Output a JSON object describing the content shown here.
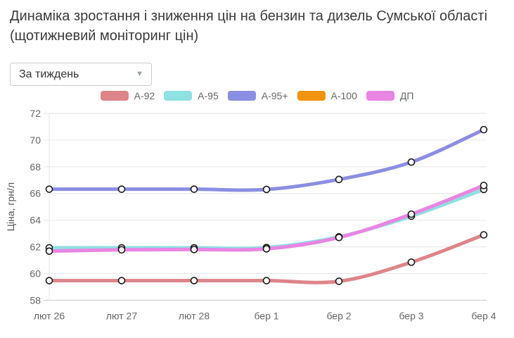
{
  "header": {
    "title_line1": "Динаміка зростання і зниження цін на бензин та дизель Сумської області",
    "title_line2": "(щотижневий моніторинг цін)"
  },
  "controls": {
    "period_select": {
      "value": "За тиждень"
    }
  },
  "chart_data": {
    "type": "line",
    "title": "",
    "xlabel": "",
    "ylabel": "Ціна, грн/л",
    "categories": [
      "лют 26",
      "лют 27",
      "лют 28",
      "бер 1",
      "бер 2",
      "бер 3",
      "бер 4"
    ],
    "y_ticks": [
      58,
      60,
      62,
      64,
      66,
      68,
      70,
      72
    ],
    "y_range": [
      58,
      72
    ],
    "grid": "horizontal",
    "legend_position": "top-center",
    "line_style": "smooth",
    "marker_style": "white circle with black outline",
    "series": [
      {
        "name": "A-92",
        "color": "#de858a",
        "values": [
          59.47,
          59.47,
          59.47,
          59.47,
          59.42,
          60.85,
          62.9
        ]
      },
      {
        "name": "A-95",
        "color": "#8fe0e0",
        "values": [
          61.93,
          61.93,
          61.93,
          61.95,
          62.75,
          64.3,
          66.3
        ]
      },
      {
        "name": "A-95+",
        "color": "#8b8ee2",
        "values": [
          66.32,
          66.32,
          66.32,
          66.3,
          67.05,
          68.35,
          70.78
        ]
      },
      {
        "name": "A-100",
        "color": "#f0930f",
        "values": null
      },
      {
        "name": "ДП",
        "color": "#e985e3",
        "values": [
          61.68,
          61.78,
          61.8,
          61.85,
          62.7,
          64.45,
          66.6
        ]
      }
    ],
    "colors": {
      "grid_line": "#e6e6e6",
      "axis_line": "#c9c9c9",
      "tick_text": "#666666",
      "axis_title_text": "#555555",
      "marker_stroke": "#191919",
      "marker_fill": "#ffffff"
    }
  }
}
